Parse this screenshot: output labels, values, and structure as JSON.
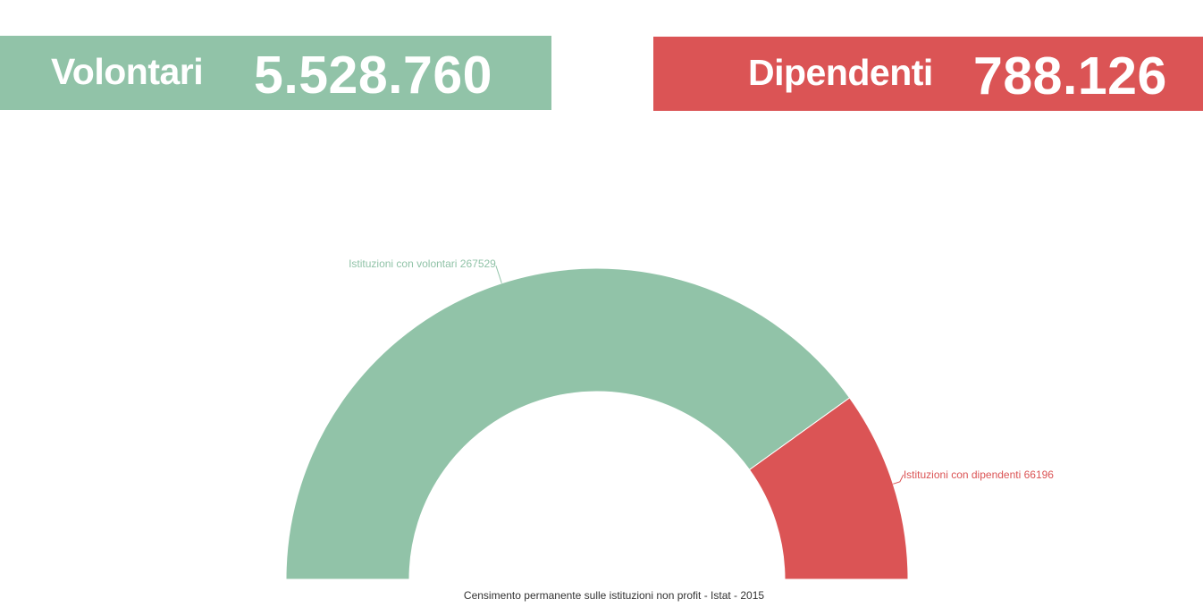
{
  "kpis": {
    "volontari": {
      "label": "Volontari",
      "value": "5.528.760",
      "color": "#91c3a8"
    },
    "dipendenti": {
      "label": "Dipendenti",
      "value": "788.126",
      "color": "#db5455"
    }
  },
  "chart_data": {
    "type": "pie",
    "variant": "semi-donut",
    "slices": [
      {
        "label": "Istituzioni con volontari",
        "value": 267529,
        "color": "#91c3a8"
      },
      {
        "label": "Istituzioni con dipendenti",
        "value": 66196,
        "color": "#db5455"
      }
    ],
    "caption": "Censimento permanente sulle istituzioni non profit - Istat - 2015"
  }
}
